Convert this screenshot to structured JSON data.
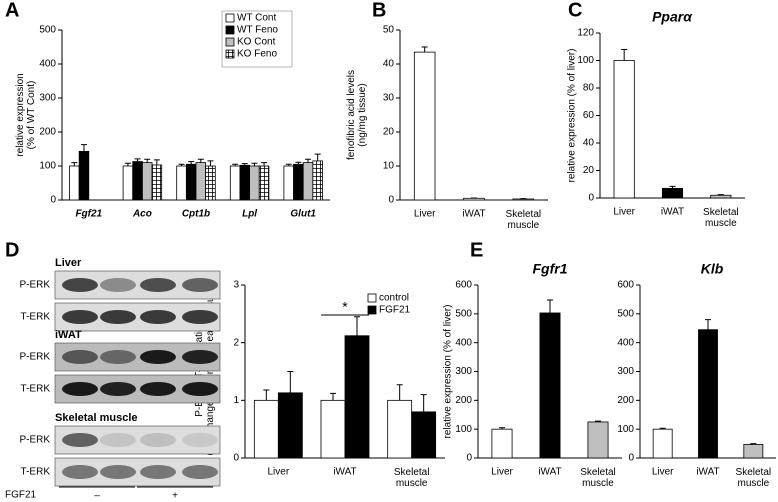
{
  "chart_data": [
    {
      "type": "bar",
      "panel": "A",
      "ylabel": [
        "relative expression",
        "(% of WT Cont)"
      ],
      "categories": [
        "Fgf21",
        "Aco",
        "Cpt1b",
        "Lpl",
        "Glut1"
      ],
      "series": [
        {
          "name": "WT Cont",
          "color": "#ffffff",
          "values": [
            100,
            100,
            100,
            100,
            100
          ],
          "errors": [
            10,
            8,
            5,
            5,
            5
          ]
        },
        {
          "name": "WT Feno",
          "color": "#000000",
          "values": [
            143,
            113,
            105,
            102,
            105
          ],
          "errors": [
            20,
            8,
            8,
            5,
            6
          ]
        },
        {
          "name": "KO Cont",
          "color": "#bfbfbf",
          "values": [
            null,
            110,
            110,
            100,
            110
          ],
          "errors": [
            null,
            10,
            10,
            8,
            10
          ]
        },
        {
          "name": "KO Feno",
          "color": "#ffffff",
          "hatch": true,
          "values": [
            null,
            103,
            100,
            100,
            115
          ],
          "errors": [
            null,
            15,
            15,
            10,
            20
          ]
        }
      ],
      "ylim": [
        0,
        500
      ],
      "yticks": [
        0,
        100,
        200,
        300,
        400,
        500
      ],
      "legend": "upper right"
    },
    {
      "type": "bar",
      "panel": "B",
      "ylabel": [
        "fenofibric acid levels",
        "(ng/mg tissue)"
      ],
      "categories": [
        "Liver",
        "iWAT",
        "Skeletal muscle"
      ],
      "values": [
        43.5,
        0.5,
        0.3
      ],
      "errors": [
        1.5,
        0.1,
        0.1
      ],
      "colors": [
        "#ffffff",
        "#ffffff",
        "#ffffff"
      ],
      "ylim": [
        0,
        50
      ],
      "yticks": [
        0,
        10,
        20,
        30,
        40,
        50
      ]
    },
    {
      "type": "bar",
      "panel": "C",
      "title": "Pparα",
      "ylabel": [
        "relative expression (% of liver)"
      ],
      "categories": [
        "Liver",
        "iWAT",
        "Skeletal muscle"
      ],
      "values": [
        100,
        7,
        2
      ],
      "errors": [
        8,
        1.5,
        0.5
      ],
      "colors": [
        "#ffffff",
        "#000000",
        "#bfbfbf"
      ],
      "ylim": [
        0,
        120
      ],
      "yticks": [
        0,
        20,
        40,
        60,
        80,
        100,
        120
      ]
    },
    {
      "type": "bar",
      "ylabel": [
        "P-ERK / T-ERK ratio",
        "(fold change vs control in each tissue)"
      ],
      "categories": [
        "Liver",
        "iWAT",
        "Skeletal muscle"
      ],
      "series": [
        {
          "name": "control",
          "color": "#ffffff",
          "values": [
            1,
            1,
            1
          ],
          "errors": [
            0.18,
            0.12,
            0.27
          ]
        },
        {
          "name": "FGF21",
          "color": "#000000",
          "values": [
            1.13,
            2.12,
            0.8
          ],
          "errors": [
            0.37,
            0.33,
            0.3
          ]
        }
      ],
      "ylim": [
        0,
        3
      ],
      "yticks": [
        0,
        1,
        2,
        3
      ],
      "legend": "upper right",
      "annotation": "*"
    },
    {
      "type": "bar",
      "panel": "E",
      "title": "Fgfr1",
      "ylabel": [
        "relative expression (% of liver)"
      ],
      "categories": [
        "Liver",
        "iWAT",
        "Skeletal muscle"
      ],
      "values": [
        100,
        503,
        125
      ],
      "errors": [
        5,
        45,
        3
      ],
      "colors": [
        "#ffffff",
        "#000000",
        "#bfbfbf"
      ],
      "ylim": [
        0,
        600
      ],
      "yticks": [
        0,
        100,
        200,
        300,
        400,
        500,
        600
      ]
    },
    {
      "type": "bar",
      "title": "Klb",
      "categories": [
        "Liver",
        "iWAT",
        "Skeletal muscle"
      ],
      "values": [
        100,
        445,
        47
      ],
      "errors": [
        3,
        35,
        3
      ],
      "colors": [
        "#ffffff",
        "#000000",
        "#bfbfbf"
      ],
      "ylim": [
        0,
        600
      ],
      "yticks": [
        0,
        100,
        200,
        300,
        400,
        500,
        600
      ]
    }
  ],
  "blot": {
    "panel": "D",
    "tissues": [
      {
        "name": "Liver",
        "rows": [
          "P-ERK",
          "T-ERK"
        ]
      },
      {
        "name": "iWAT",
        "rows": [
          "P-ERK",
          "T-ERK"
        ]
      },
      {
        "name": "Skeletal muscle",
        "rows": [
          "P-ERK",
          "T-ERK"
        ]
      }
    ],
    "treatment": "FGF21",
    "levels": [
      "–",
      "+"
    ]
  }
}
